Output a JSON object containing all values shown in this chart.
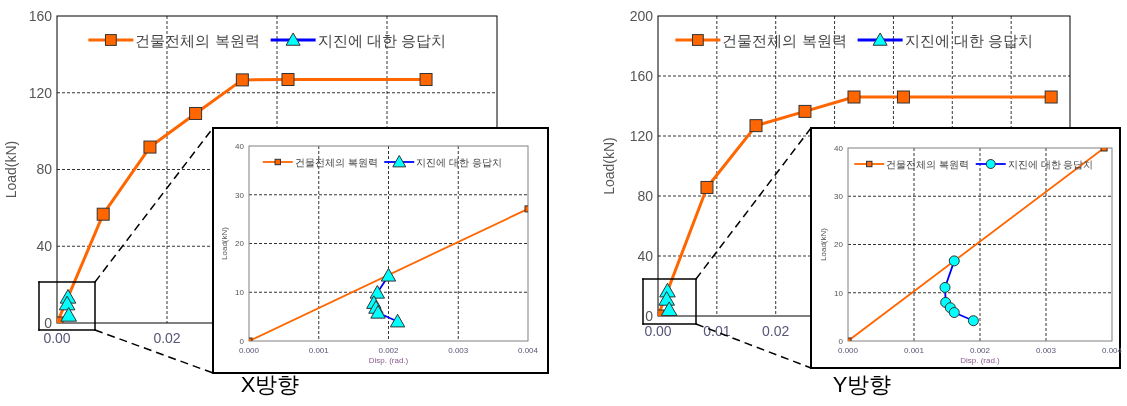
{
  "chart_data": [
    {
      "type": "line",
      "ylabel": "Load(kN)",
      "annotations": [
        "X방향"
      ],
      "legend": "top",
      "grid": true,
      "xlim": [
        0,
        0.08
      ],
      "ylim": [
        0,
        160
      ],
      "xticks": [
        {
          "value": 0,
          "label": "0.00"
        },
        {
          "value": 0.02,
          "label": "0.02"
        },
        {
          "value": 0.04,
          "label": null
        },
        {
          "value": 0.06,
          "label": null
        }
      ],
      "yticks": [
        0,
        40,
        80,
        120,
        160
      ],
      "series": [
        {
          "name": "건물전체의 복원력",
          "color": "#ff6600",
          "marker": "square",
          "x": [
            0,
            0.0084,
            0.0169,
            0.0252,
            0.0337,
            0.042,
            0.0671
          ],
          "values": [
            0,
            56.7,
            91.7,
            109.2,
            126.7,
            126.9,
            126.9
          ]
        },
        {
          "name": "지진에 대한 응답치",
          "type": "scatter",
          "color": "#0000ff",
          "colors": [
            "#00ffff",
            "#00ffff",
            "#00ffff"
          ],
          "marker": "triangle",
          "x": [
            0.002,
            0.00184,
            0.00213
          ],
          "values": [
            13.4,
            9.9,
            4.0
          ]
        }
      ]
    },
    {
      "type": "line",
      "xlabel": "Disp. (rad.)",
      "ylabel": "Load(kN)",
      "legend": "top",
      "grid": true,
      "xlim": [
        0,
        0.004
      ],
      "ylim": [
        0,
        40
      ],
      "xticks": [
        {
          "value": 0,
          "label": "0.000"
        },
        {
          "value": 0.001,
          "label": "0.001"
        },
        {
          "value": 0.002,
          "label": "0.002"
        },
        {
          "value": 0.003,
          "label": "0.003"
        },
        {
          "value": 0.004,
          "label": "0.004"
        }
      ],
      "yticks": [
        0,
        10,
        20,
        30,
        40
      ],
      "series": [
        {
          "name": "건물전체의 복원력",
          "color": "#ff6600",
          "marker": "square",
          "x": [
            0,
            0.004
          ],
          "values": [
            0,
            27.1
          ]
        },
        {
          "name": "지진에 대한 응답치",
          "color": "#0000ff",
          "colors": [
            "#00ffff",
            "#00ffff",
            "#00ffff",
            "#00ffff",
            "#00ffff",
            "#00ffff"
          ],
          "marker": "triangle",
          "x": [
            0.002,
            0.00184,
            0.00179,
            0.00182,
            0.00185,
            0.00213
          ],
          "values": [
            13.4,
            9.9,
            7.8,
            6.8,
            5.8,
            4.0
          ]
        }
      ]
    },
    {
      "type": "line",
      "ylabel": "Load(kN)",
      "annotations": [
        "Y방향"
      ],
      "legend": "top",
      "grid": true,
      "xlim": [
        0,
        0.07
      ],
      "ylim": [
        0,
        200
      ],
      "xticks": [
        {
          "value": 0,
          "label": "0.00"
        },
        {
          "value": 0.01,
          "label": "0.01"
        },
        {
          "value": 0.02,
          "label": "0.02"
        },
        {
          "value": 0.03,
          "label": null
        },
        {
          "value": 0.04,
          "label": null
        },
        {
          "value": 0.05,
          "label": null
        },
        {
          "value": 0.06,
          "label": null
        }
      ],
      "yticks": [
        0,
        40,
        80,
        120,
        160,
        200
      ],
      "series": [
        {
          "name": "건물전체의 복원력",
          "color": "#ff6600",
          "marker": "square",
          "x": [
            0,
            0.00832,
            0.01665,
            0.02497,
            0.0333,
            0.0417,
            0.0668
          ],
          "values": [
            0,
            85.7,
            126.9,
            136.4,
            146,
            146,
            146
          ]
        },
        {
          "name": "지진에 대한 응답치",
          "type": "scatter",
          "color": "#0000ff",
          "colors": [
            "#00ffff",
            "#00ffff",
            "#00ffff"
          ],
          "marker": "triangle",
          "x": [
            0.00161,
            0.00147,
            0.0019
          ],
          "values": [
            16.6,
            11.1,
            4.2
          ]
        }
      ]
    },
    {
      "type": "line",
      "xlabel": "Disp. (rad.)",
      "ylabel": "Load(kN)",
      "legend": "top",
      "grid": true,
      "xlim": [
        0,
        0.004
      ],
      "ylim": [
        0,
        40
      ],
      "xticks": [
        {
          "value": 0,
          "label": "0.000"
        },
        {
          "value": 0.001,
          "label": "0.001"
        },
        {
          "value": 0.002,
          "label": "0.002"
        },
        {
          "value": 0.003,
          "label": "0.003"
        },
        {
          "value": 0.004,
          "label": "0.004"
        }
      ],
      "yticks": [
        0,
        10,
        20,
        30,
        40
      ],
      "series": [
        {
          "name": "건물전체의 복원력",
          "color": "#ff6600",
          "marker": "square",
          "x": [
            0,
            0.00388
          ],
          "values": [
            0,
            40
          ]
        },
        {
          "name": "지진에 대한 응답치",
          "color": "#0000ff",
          "colors": [
            "#00ffff",
            "#00ffff",
            "#00ffff",
            "#00ffff",
            "#00ffff",
            "#00ffff"
          ],
          "marker": "circle",
          "x": [
            0.00161,
            0.00147,
            0.00148,
            0.00155,
            0.00161,
            0.0019
          ],
          "values": [
            16.6,
            11.1,
            8.0,
            6.9,
            5.9,
            4.2
          ]
        }
      ]
    }
  ]
}
